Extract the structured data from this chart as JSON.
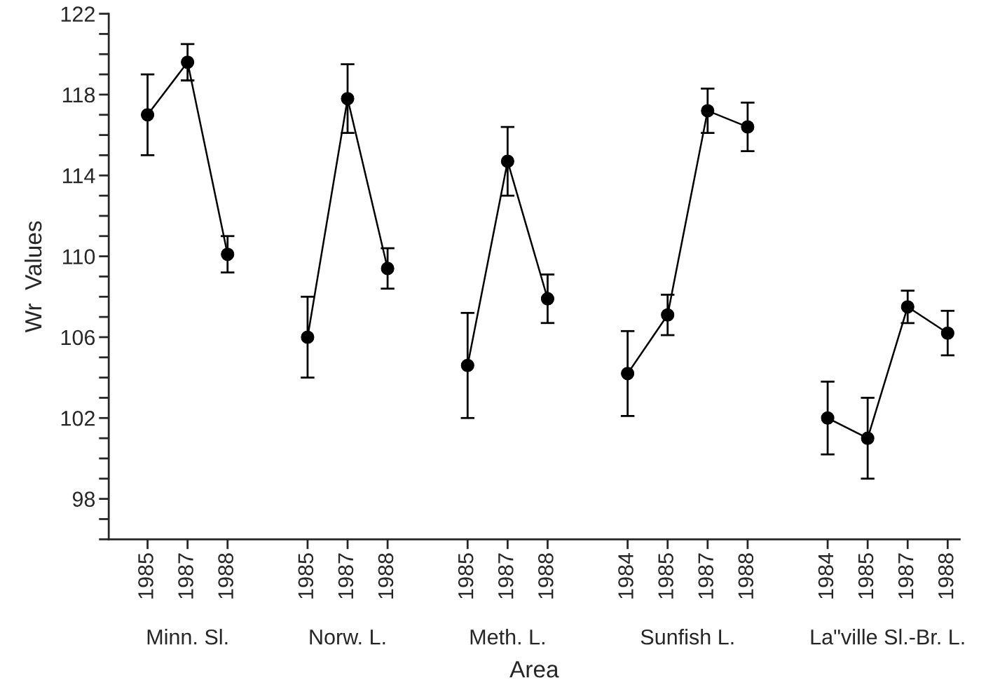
{
  "chart_data": {
    "type": "line",
    "xlabel": "Area",
    "ylabel": "Wr  Values",
    "categories": [
      "1985",
      "1987",
      "1988",
      null,
      "1985",
      "1987",
      "1988",
      null,
      "1985",
      "1987",
      "1988",
      null,
      "1984",
      "1985",
      "1987",
      "1988",
      null,
      "1984",
      "1985",
      "1987",
      "1988"
    ],
    "series": [
      {
        "color": "#000000",
        "values": [
          117,
          119.6,
          110.1,
          null,
          null,
          null,
          null,
          null,
          null,
          null,
          null,
          null,
          null,
          null,
          null,
          null,
          null,
          null,
          null,
          null,
          null
        ],
        "errors": [
          2,
          0.9,
          0.9,
          null,
          null,
          null,
          null,
          null,
          null,
          null,
          null,
          null,
          null,
          null,
          null,
          null,
          null,
          null,
          null,
          null,
          null
        ]
      },
      {
        "color": "#000000",
        "values": [
          null,
          null,
          null,
          null,
          106,
          117.8,
          109.4,
          null,
          null,
          null,
          null,
          null,
          null,
          null,
          null,
          null,
          null,
          null,
          null,
          null,
          null
        ],
        "errors": [
          null,
          null,
          null,
          null,
          2,
          1.7,
          1,
          null,
          null,
          null,
          null,
          null,
          null,
          null,
          null,
          null,
          null,
          null,
          null,
          null,
          null
        ]
      },
      {
        "color": "#000000",
        "values": [
          null,
          null,
          null,
          null,
          null,
          null,
          null,
          null,
          104.6,
          114.7,
          107.9,
          null,
          null,
          null,
          null,
          null,
          null,
          null,
          null,
          null,
          null
        ],
        "errors": [
          null,
          null,
          null,
          null,
          null,
          null,
          null,
          null,
          2.6,
          1.7,
          1.2,
          null,
          null,
          null,
          null,
          null,
          null,
          null,
          null,
          null,
          null
        ]
      },
      {
        "color": "#000000",
        "values": [
          null,
          null,
          null,
          null,
          null,
          null,
          null,
          null,
          null,
          null,
          null,
          null,
          104.2,
          107.1,
          117.2,
          116.4,
          null,
          null,
          null,
          null,
          null
        ],
        "errors": [
          null,
          null,
          null,
          null,
          null,
          null,
          null,
          null,
          null,
          null,
          null,
          null,
          2.1,
          1,
          1.1,
          1.2,
          null,
          null,
          null,
          null,
          null
        ]
      },
      {
        "color": "#000000",
        "values": [
          null,
          null,
          null,
          null,
          null,
          null,
          null,
          null,
          null,
          null,
          null,
          null,
          null,
          null,
          null,
          null,
          null,
          102,
          101,
          107.5,
          106.2
        ],
        "errors": [
          null,
          null,
          null,
          null,
          null,
          null,
          null,
          null,
          null,
          null,
          null,
          null,
          null,
          null,
          null,
          null,
          null,
          1.8,
          2,
          0.8,
          1.1
        ]
      }
    ],
    "annotations": [
      "Minn. Sl.",
      "Norw. L.",
      "Meth. L.",
      "Sunfish L.",
      "La\"ville Sl.-Br. L."
    ],
    "ylim": [
      96,
      122
    ],
    "yticks": [
      {
        "value": 96,
        "label": null
      },
      {
        "value": 97,
        "label": null
      },
      98,
      {
        "value": 99,
        "label": null
      },
      {
        "value": 100,
        "label": null
      },
      {
        "value": 101,
        "label": null
      },
      102,
      {
        "value": 103,
        "label": null
      },
      {
        "value": 104,
        "label": null
      },
      {
        "value": 105,
        "label": null
      },
      106,
      {
        "value": 107,
        "label": null
      },
      {
        "value": 108,
        "label": null
      },
      {
        "value": 109,
        "label": null
      },
      110,
      {
        "value": 111,
        "label": null
      },
      {
        "value": 112,
        "label": null
      },
      {
        "value": 113,
        "label": null
      },
      114,
      {
        "value": 115,
        "label": null
      },
      {
        "value": 116,
        "label": null
      },
      {
        "value": 117,
        "label": null
      },
      118,
      {
        "value": 119,
        "label": null
      },
      {
        "value": 120,
        "label": null
      },
      {
        "value": 121,
        "label": null
      },
      122
    ],
    "marker": "circle",
    "line_style": "solid",
    "grid": false,
    "legend": false
  }
}
